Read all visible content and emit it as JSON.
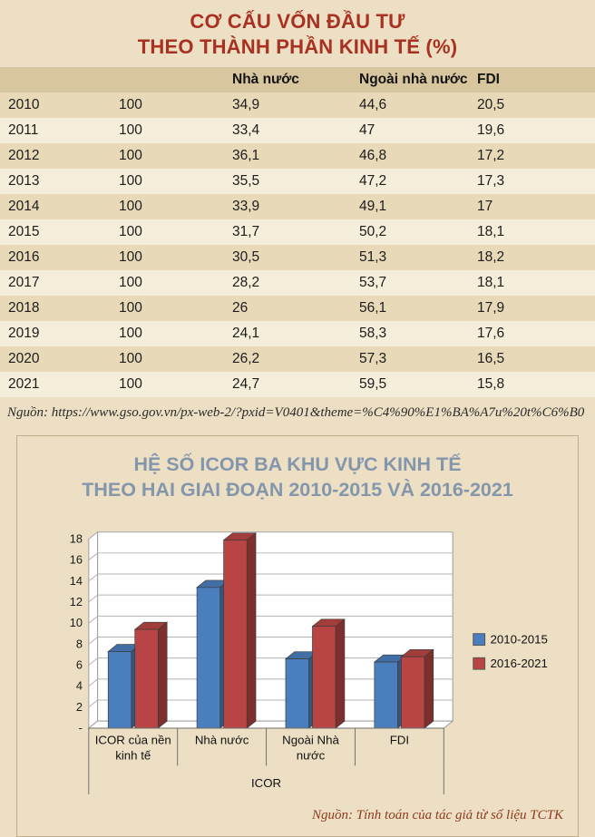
{
  "table_section": {
    "title_line1": "CƠ CẤU VỐN ĐẦU TƯ",
    "title_line2": "THEO THÀNH PHẦN KINH TẾ (%)",
    "headers": [
      "",
      "",
      "Nhà nước",
      "Ngoài nhà nước",
      "FDI"
    ],
    "rows": [
      [
        "2010",
        "100",
        "34,9",
        "44,6",
        "20,5"
      ],
      [
        "2011",
        "100",
        "33,4",
        "47",
        "19,6"
      ],
      [
        "2012",
        "100",
        "36,1",
        "46,8",
        "17,2"
      ],
      [
        "2013",
        "100",
        "35,5",
        "47,2",
        "17,3"
      ],
      [
        "2014",
        "100",
        "33,9",
        "49,1",
        "17"
      ],
      [
        "2015",
        "100",
        "31,7",
        "50,2",
        "18,1"
      ],
      [
        "2016",
        "100",
        "30,5",
        "51,3",
        "18,2"
      ],
      [
        "2017",
        "100",
        "28,2",
        "53,7",
        "18,1"
      ],
      [
        "2018",
        "100",
        "26",
        "56,1",
        "17,9"
      ],
      [
        "2019",
        "100",
        "24,1",
        "58,3",
        "17,6"
      ],
      [
        "2020",
        "100",
        "26,2",
        "57,3",
        "16,5"
      ],
      [
        "2021",
        "100",
        "24,7",
        "59,5",
        "15,8"
      ]
    ],
    "source": "Nguồn: https://www.gso.gov.vn/px-web-2/?pxid=V0401&theme=%C4%90%E1%BA%A7u%20t%C6%B0"
  },
  "chart_section": {
    "title_line1": "HỆ SỐ ICOR BA KHU VỰC KINH TẾ",
    "title_line2": "THEO HAI GIAI ĐOẠN 2010-2015 VÀ 2016-2021",
    "source": "Nguồn: Tính toán của tác giả từ số liệu TCTK"
  },
  "chart_data": {
    "type": "bar",
    "style": "3d-column",
    "title": "HỆ SỐ ICOR BA KHU VỰC KINH TẾ THEO HAI GIAI ĐOẠN 2010-2015 VÀ 2016-2021",
    "categories": [
      "ICOR của nền kinh tế",
      "Nhà nước",
      "Ngoài Nhà nước",
      "FDI"
    ],
    "series": [
      {
        "name": "2010-2015",
        "color": "#4a7ebc",
        "values": [
          7.3,
          13.4,
          6.6,
          6.3
        ]
      },
      {
        "name": "2016-2021",
        "color": "#b84543",
        "values": [
          9.4,
          17.9,
          9.7,
          6.8
        ]
      }
    ],
    "xlabel": "ICOR",
    "ylabel": "",
    "ylim": [
      0,
      18
    ],
    "ytick_step": 2,
    "ytick_zero_label": "-",
    "legend_position": "right",
    "grid": true
  }
}
